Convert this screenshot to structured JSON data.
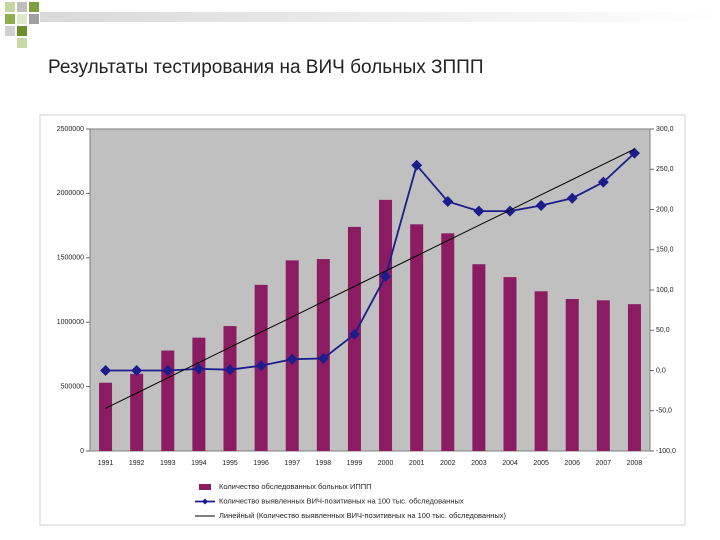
{
  "chart_data": {
    "type": "bar_line",
    "title": "Результаты тестирования на ВИЧ больных ЗППП",
    "categories": [
      "1991",
      "1992",
      "1993",
      "1994",
      "1995",
      "1996",
      "1997",
      "1998",
      "1999",
      "2000",
      "2001",
      "2002",
      "2003",
      "2004",
      "2005",
      "2006",
      "2007",
      "2008"
    ],
    "series": [
      {
        "name": "Количество обследованных больных ИППП",
        "type": "bar",
        "color": "#8b1c62",
        "values": [
          530000,
          600000,
          780000,
          880000,
          970000,
          1290000,
          1480000,
          1490000,
          1740000,
          1950000,
          1760000,
          1690000,
          1450000,
          1350000,
          1240000,
          1180000,
          1170000,
          1140000
        ]
      },
      {
        "name": "Количество выявленных ВИЧ-позитивных на 100 тыс. обследованных",
        "type": "line",
        "axis": "y2",
        "color": "#1c1c8c",
        "values": [
          0,
          0,
          0,
          2,
          1,
          6,
          14,
          15,
          45,
          117,
          255,
          210,
          198,
          198,
          205,
          214,
          234,
          270
        ]
      },
      {
        "name": "Линейный (Количество выявленных ВИЧ-позитивных на 100 тыс. обследованных)",
        "type": "trend",
        "axis": "y2",
        "color": "#000000",
        "values": [
          -47,
          -28.1,
          -9.1,
          9.8,
          28.8,
          47.7,
          66.6,
          85.6,
          104.5,
          123.5,
          142.4,
          161.4,
          180.3,
          199.2,
          218.2,
          237.1,
          256.1,
          275
        ]
      }
    ],
    "ylim": [
      0,
      2500000
    ],
    "yticks": [
      0,
      500000,
      1000000,
      1500000,
      2000000,
      2500000
    ],
    "y2lim": [
      -100,
      300
    ],
    "y2ticks": [
      {
        "value": -100,
        "label": "-100,0"
      },
      {
        "value": -50,
        "label": "-50,0"
      },
      {
        "value": 0,
        "label": "0,0"
      },
      {
        "value": 50,
        "label": "50,0"
      },
      {
        "value": 100,
        "label": "100,0"
      },
      {
        "value": 150,
        "label": "150,0"
      },
      {
        "value": 200,
        "label": "200,0"
      },
      {
        "value": 250,
        "label": "250,0"
      },
      {
        "value": 300,
        "label": "300,0"
      }
    ],
    "plot_background": "#c0c0c0",
    "legend": "bottom"
  }
}
